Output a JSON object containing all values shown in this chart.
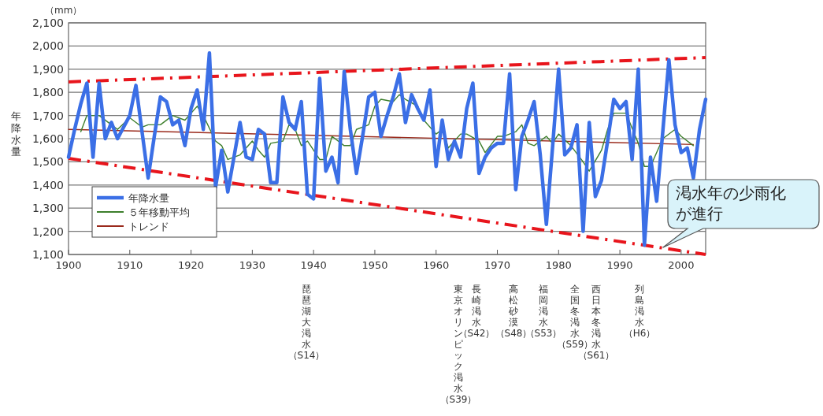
{
  "chart_data": {
    "type": "line",
    "ylabel": "年降水量",
    "x": [
      1900,
      1901,
      1902,
      1903,
      1904,
      1905,
      1906,
      1907,
      1908,
      1909,
      1910,
      1911,
      1912,
      1913,
      1914,
      1915,
      1916,
      1917,
      1918,
      1919,
      1920,
      1921,
      1922,
      1923,
      1924,
      1925,
      1926,
      1927,
      1928,
      1929,
      1930,
      1931,
      1932,
      1933,
      1934,
      1935,
      1936,
      1937,
      1938,
      1939,
      1940,
      1941,
      1942,
      1943,
      1944,
      1945,
      1946,
      1947,
      1948,
      1949,
      1950,
      1951,
      1952,
      1953,
      1954,
      1955,
      1956,
      1957,
      1958,
      1959,
      1960,
      1961,
      1962,
      1963,
      1964,
      1965,
      1966,
      1967,
      1968,
      1969,
      1970,
      1971,
      1972,
      1973,
      1974,
      1975,
      1976,
      1977,
      1978,
      1979,
      1980,
      1981,
      1982,
      1983,
      1984,
      1985,
      1986,
      1987,
      1988,
      1989,
      1990,
      1991,
      1992,
      1993,
      1994,
      1995,
      1996,
      1997,
      1998,
      1999,
      2000,
      2001,
      2002,
      2003,
      2004
    ],
    "series": [
      {
        "name": "年降水量",
        "color": "#3b6fe6",
        "values": [
          1520,
          1640,
          1750,
          1840,
          1520,
          1840,
          1600,
          1670,
          1600,
          1650,
          1700,
          1830,
          1630,
          1430,
          1610,
          1780,
          1760,
          1660,
          1680,
          1570,
          1730,
          1810,
          1640,
          1970,
          1390,
          1550,
          1370,
          1520,
          1670,
          1520,
          1510,
          1640,
          1620,
          1410,
          1410,
          1780,
          1670,
          1640,
          1760,
          1360,
          1340,
          1860,
          1460,
          1520,
          1410,
          1890,
          1640,
          1450,
          1610,
          1780,
          1800,
          1610,
          1700,
          1780,
          1880,
          1670,
          1790,
          1730,
          1680,
          1810,
          1480,
          1680,
          1510,
          1590,
          1520,
          1730,
          1840,
          1450,
          1520,
          1560,
          1580,
          1580,
          1880,
          1380,
          1610,
          1680,
          1760,
          1530,
          1230,
          1560,
          1900,
          1530,
          1560,
          1660,
          1200,
          1670,
          1350,
          1420,
          1590,
          1770,
          1730,
          1760,
          1510,
          1900,
          1140,
          1520,
          1330,
          1630,
          1940,
          1660,
          1540,
          1560,
          1430,
          1640,
          1770
        ]
      },
      {
        "name": "５年移動平均",
        "color": "#3d7f2c",
        "x": [
          1902,
          1903,
          1905,
          1907,
          1908,
          1910,
          1912,
          1913,
          1915,
          1917,
          1919,
          1921,
          1922,
          1924,
          1925,
          1926,
          1928,
          1930,
          1931,
          1932,
          1933,
          1935,
          1936,
          1937,
          1938,
          1939,
          1941,
          1942,
          1943,
          1945,
          1946,
          1947,
          1949,
          1950,
          1951,
          1953,
          1954,
          1955,
          1957,
          1958,
          1960,
          1961,
          1962,
          1964,
          1965,
          1967,
          1968,
          1970,
          1971,
          1973,
          1974,
          1975,
          1976,
          1978,
          1979,
          1980,
          1982,
          1984,
          1985,
          1987,
          1988,
          1989,
          1991,
          1993,
          1994,
          1995,
          1997,
          1999,
          2000,
          2002
        ],
        "values": [
          1630,
          1700,
          1700,
          1660,
          1640,
          1690,
          1650,
          1660,
          1660,
          1700,
          1680,
          1740,
          1700,
          1590,
          1570,
          1510,
          1530,
          1590,
          1550,
          1520,
          1580,
          1590,
          1660,
          1640,
          1570,
          1590,
          1510,
          1510,
          1610,
          1570,
          1570,
          1640,
          1660,
          1740,
          1770,
          1760,
          1790,
          1770,
          1740,
          1680,
          1620,
          1640,
          1560,
          1620,
          1620,
          1590,
          1540,
          1610,
          1610,
          1630,
          1660,
          1580,
          1570,
          1610,
          1580,
          1620,
          1570,
          1500,
          1460,
          1550,
          1640,
          1710,
          1710,
          1580,
          1480,
          1480,
          1600,
          1640,
          1610,
          1570
        ]
      },
      {
        "name": "トレンド",
        "color": "#9a2a1c",
        "x": [
          1900,
          2002
        ],
        "values": [
          1640,
          1575
        ]
      },
      {
        "color": "#e8151c",
        "line_style": "dashdot",
        "x": [
          1900,
          2004
        ],
        "values": [
          1845,
          1950
        ]
      },
      {
        "color": "#e8151c",
        "line_style": "dashdot",
        "x": [
          1900,
          2004
        ],
        "values": [
          1515,
          1100
        ]
      }
    ],
    "xlim": [
      1900,
      2004
    ],
    "xticks": [
      1900,
      1910,
      1920,
      1930,
      1940,
      1950,
      1960,
      1970,
      1980,
      1990,
      2000
    ],
    "ylim": [
      1100,
      2100
    ],
    "yticks": [
      {
        "value": 1100,
        "label": "1,100"
      },
      {
        "value": 1200,
        "label": "1,200"
      },
      {
        "value": 1300,
        "label": "1,300"
      },
      {
        "value": 1400,
        "label": "1,400"
      },
      {
        "value": 1500,
        "label": "1,500"
      },
      {
        "value": 1600,
        "label": "1,600"
      },
      {
        "value": 1700,
        "label": "1,700"
      },
      {
        "value": 1800,
        "label": "1,800"
      },
      {
        "value": 1900,
        "label": "1,900"
      },
      {
        "value": 2000,
        "label": "2,000"
      },
      {
        "value": 2100,
        "label": "2,100"
      }
    ],
    "grid": "y",
    "legend": "bottom left",
    "line_style": "solid",
    "annotations": [
      "（mm）",
      {
        "text": "渇水年の少雨化が進行",
        "x": 1997,
        "y": 1130
      },
      "琵琶湖大渇水（S14）",
      "東京オリンピック渇水（S39）",
      "長崎渇水（S42）",
      "高松砂漠（S48）",
      "福岡渇水（S53）",
      "全国冬渇水（S59）",
      "西日本冬渇水（S61）",
      "列島渇水（H6）"
    ]
  }
}
